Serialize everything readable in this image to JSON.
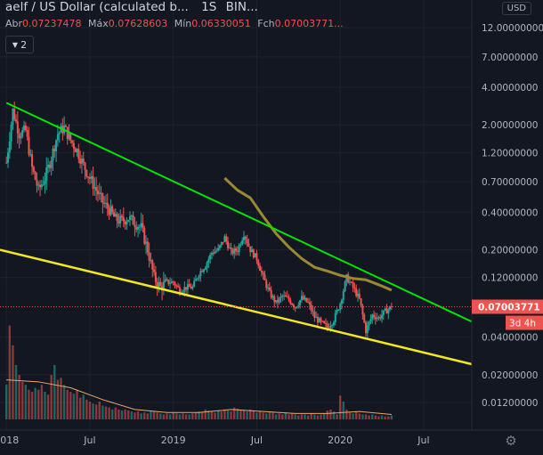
{
  "header": {
    "title": "aelf / US Dollar (calculated b...",
    "interval": "1S",
    "exchange": "BIN...",
    "ohlc": [
      {
        "label": "Abr",
        "value": "0.07237478"
      },
      {
        "label": "Máx",
        "value": "0.07628603"
      },
      {
        "label": "Mín",
        "value": "0.06330051"
      },
      {
        "label": "Fch",
        "value": "0.07003771..."
      }
    ],
    "indicator_badge": "2"
  },
  "currency_button": "USD",
  "last_price_label": "0.07003771",
  "countdown_label": "3d 4h",
  "colors": {
    "background": "#131722",
    "up": "#26a69a",
    "down": "#ef5350",
    "upper_trendline": "#00e600",
    "lower_trendline": "#f5e625",
    "moving_average": "#9c8a32",
    "volume_ma": "#e8a86b"
  },
  "chart_data": {
    "type": "candlestick",
    "y_scale": "log",
    "ylim": [
      0.0075,
      14
    ],
    "y_ticks": [
      "12.00000000",
      "7.00000000",
      "4.00000000",
      "2.00000000",
      "1.20000000",
      "0.70000000",
      "0.40000000",
      "0.20000000",
      "0.12000000",
      "0.04000000",
      "0.02000000",
      "0.01200000"
    ],
    "y_tick_values": [
      12,
      7,
      4,
      2,
      1.2,
      0.7,
      0.4,
      0.2,
      0.12,
      0.04,
      0.02,
      0.012
    ],
    "x_labels": [
      "2018",
      "Jul",
      "2019",
      "Jul",
      "2020",
      "Jul"
    ],
    "x_label_weeks": [
      0,
      26,
      52,
      78,
      104,
      130
    ],
    "week_range": [
      -2,
      145
    ],
    "last_price": 0.07003771,
    "price_points": [
      [
        0,
        1.0
      ],
      [
        2,
        2.6
      ],
      [
        4,
        1.7
      ],
      [
        6,
        1.8
      ],
      [
        8,
        0.9
      ],
      [
        10,
        0.6
      ],
      [
        12,
        0.75
      ],
      [
        14,
        1.1
      ],
      [
        16,
        1.7
      ],
      [
        18,
        1.9
      ],
      [
        20,
        1.5
      ],
      [
        22,
        1.25
      ],
      [
        24,
        0.95
      ],
      [
        26,
        0.75
      ],
      [
        28,
        0.6
      ],
      [
        30,
        0.48
      ],
      [
        32,
        0.42
      ],
      [
        34,
        0.35
      ],
      [
        36,
        0.34
      ],
      [
        38,
        0.36
      ],
      [
        40,
        0.33
      ],
      [
        42,
        0.3
      ],
      [
        44,
        0.2
      ],
      [
        46,
        0.12
      ],
      [
        48,
        0.1
      ],
      [
        50,
        0.11
      ],
      [
        52,
        0.11
      ],
      [
        54,
        0.095
      ],
      [
        56,
        0.1
      ],
      [
        58,
        0.1
      ],
      [
        60,
        0.13
      ],
      [
        62,
        0.15
      ],
      [
        64,
        0.19
      ],
      [
        66,
        0.2
      ],
      [
        68,
        0.25
      ],
      [
        70,
        0.19
      ],
      [
        72,
        0.2
      ],
      [
        74,
        0.27
      ],
      [
        76,
        0.2
      ],
      [
        78,
        0.17
      ],
      [
        80,
        0.12
      ],
      [
        82,
        0.09
      ],
      [
        84,
        0.075
      ],
      [
        86,
        0.085
      ],
      [
        88,
        0.08
      ],
      [
        90,
        0.07
      ],
      [
        92,
        0.082
      ],
      [
        94,
        0.075
      ],
      [
        96,
        0.058
      ],
      [
        98,
        0.052
      ],
      [
        100,
        0.048
      ],
      [
        102,
        0.055
      ],
      [
        104,
        0.075
      ],
      [
        106,
        0.12
      ],
      [
        108,
        0.1
      ],
      [
        110,
        0.08
      ],
      [
        112,
        0.045
      ],
      [
        114,
        0.06
      ],
      [
        116,
        0.057
      ],
      [
        118,
        0.064
      ],
      [
        120,
        0.07003771
      ]
    ],
    "moving_average": [
      [
        68,
        0.75
      ],
      [
        72,
        0.6
      ],
      [
        76,
        0.52
      ],
      [
        80,
        0.37
      ],
      [
        84,
        0.27
      ],
      [
        88,
        0.21
      ],
      [
        92,
        0.17
      ],
      [
        96,
        0.145
      ],
      [
        100,
        0.135
      ],
      [
        104,
        0.125
      ],
      [
        108,
        0.118
      ],
      [
        112,
        0.115
      ],
      [
        116,
        0.105
      ],
      [
        120,
        0.095
      ]
    ],
    "upper_trendline": [
      [
        0,
        3.0
      ],
      [
        145,
        0.0532
      ]
    ],
    "lower_trendline": [
      [
        -2,
        0.2
      ],
      [
        145,
        0.0243
      ]
    ],
    "volume": [
      0.35,
      0.95,
      0.75,
      0.55,
      0.45,
      0.38,
      0.35,
      0.3,
      0.28,
      0.32,
      0.3,
      0.35,
      0.28,
      0.25,
      0.45,
      0.55,
      0.4,
      0.42,
      0.35,
      0.3,
      0.28,
      0.26,
      0.3,
      0.22,
      0.25,
      0.2,
      0.18,
      0.16,
      0.15,
      0.18,
      0.14,
      0.13,
      0.12,
      0.1,
      0.12,
      0.1,
      0.09,
      0.1,
      0.09,
      0.08,
      0.07,
      0.08,
      0.06,
      0.07,
      0.06,
      0.09,
      0.08,
      0.07,
      0.06,
      0.05,
      0.06,
      0.05,
      0.07,
      0.06,
      0.05,
      0.06,
      0.05,
      0.05,
      0.06,
      0.07,
      0.08,
      0.07,
      0.1,
      0.09,
      0.08,
      0.07,
      0.09,
      0.08,
      0.1,
      0.09,
      0.08,
      0.12,
      0.11,
      0.1,
      0.09,
      0.08,
      0.1,
      0.09,
      0.07,
      0.08,
      0.07,
      0.06,
      0.08,
      0.07,
      0.05,
      0.06,
      0.05,
      0.07,
      0.05,
      0.06,
      0.05,
      0.04,
      0.05,
      0.05,
      0.04,
      0.06,
      0.05,
      0.04,
      0.05,
      0.06,
      0.09,
      0.1,
      0.08,
      0.05,
      0.24,
      0.18,
      0.1,
      0.07,
      0.06,
      0.08,
      0.06,
      0.05,
      0.05,
      0.04,
      0.05,
      0.04,
      0.03,
      0.04,
      0.03,
      0.03,
      0.04
    ],
    "volume_ma": [
      [
        0,
        0.4
      ],
      [
        10,
        0.38
      ],
      [
        20,
        0.32
      ],
      [
        30,
        0.2
      ],
      [
        40,
        0.1
      ],
      [
        50,
        0.07
      ],
      [
        60,
        0.07
      ],
      [
        70,
        0.1
      ],
      [
        80,
        0.08
      ],
      [
        90,
        0.06
      ],
      [
        100,
        0.06
      ],
      [
        110,
        0.08
      ],
      [
        120,
        0.05
      ]
    ]
  }
}
